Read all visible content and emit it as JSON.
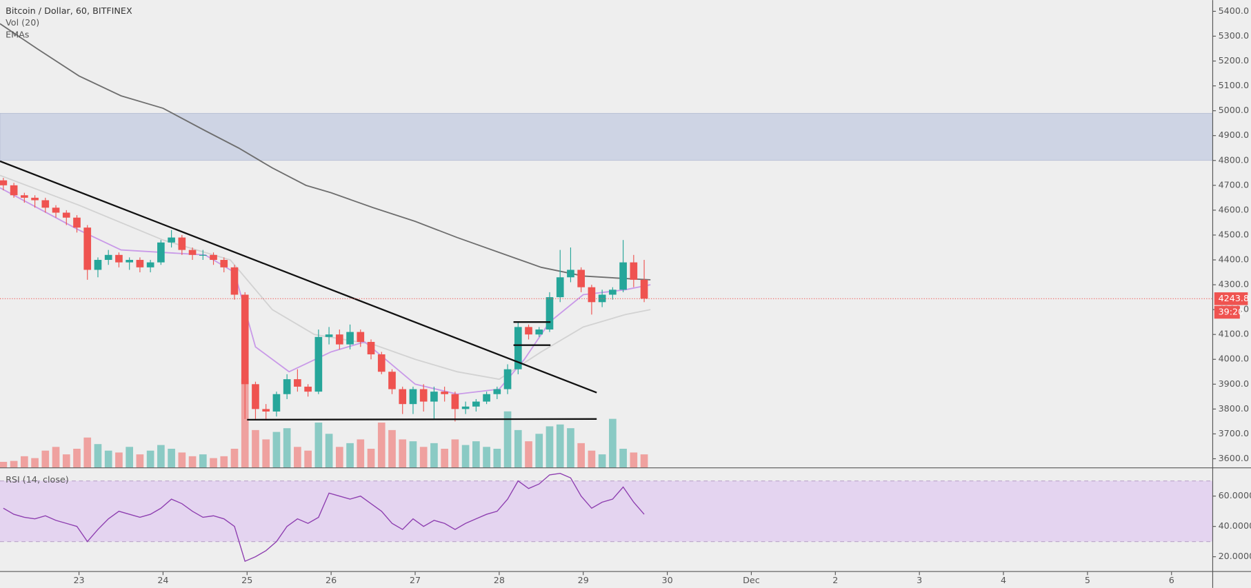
{
  "chart_data": [
    {
      "type": "candlestick",
      "title": "Bitcoin / Dollar, 60, BITFINEX",
      "volume_title": "Vol (20)",
      "ema_title": "EMAs",
      "xlim": [
        22.06,
        36.49
      ],
      "ylim": [
        3565,
        5445
      ],
      "yticks": [
        {
          "value": 3600,
          "label": "3600.0"
        },
        {
          "value": 3700,
          "label": "3700.0"
        },
        {
          "value": 3800,
          "label": "3800.0"
        },
        {
          "value": 3900,
          "label": "3900.0"
        },
        {
          "value": 4000,
          "label": "4000.0"
        },
        {
          "value": 4100,
          "label": "4100.0"
        },
        {
          "value": 4200,
          "label": "4200.0"
        },
        {
          "value": 4300,
          "label": "4300.0"
        },
        {
          "value": 4400,
          "label": "4400.0"
        },
        {
          "value": 4500,
          "label": "4500.0"
        },
        {
          "value": 4600,
          "label": "4600.0"
        },
        {
          "value": 4700,
          "label": "4700.0"
        },
        {
          "value": 4800,
          "label": "4800.0"
        },
        {
          "value": 4900,
          "label": "4900.0"
        },
        {
          "value": 5000,
          "label": "5000.0"
        },
        {
          "value": 5100,
          "label": "5100.0"
        },
        {
          "value": 5200,
          "label": "5200.0"
        },
        {
          "value": 5300,
          "label": "5300.0"
        },
        {
          "value": 5400,
          "label": "5400.0"
        }
      ],
      "up_color": "#26a69a",
      "down_color": "#ef5350",
      "volume_lim": [
        0,
        500
      ],
      "x": [
        22.1,
        22.225,
        22.35,
        22.475,
        22.6,
        22.725,
        22.85,
        22.975,
        23.1,
        23.225,
        23.35,
        23.475,
        23.6,
        23.725,
        23.85,
        23.975,
        24.1,
        24.225,
        24.35,
        24.475,
        24.6,
        24.725,
        24.85,
        24.975,
        25.1,
        25.225,
        25.35,
        25.475,
        25.6,
        25.725,
        25.85,
        25.975,
        26.1,
        26.225,
        26.35,
        26.475,
        26.6,
        26.725,
        26.85,
        26.975,
        27.1,
        27.225,
        27.35,
        27.475,
        27.6,
        27.725,
        27.85,
        27.975,
        28.1,
        28.225,
        28.35,
        28.475,
        28.6,
        28.725,
        28.85,
        28.975,
        29.1,
        29.225,
        29.35,
        29.475,
        29.6,
        29.725
      ],
      "open": [
        4720,
        4700,
        4660,
        4650,
        4640,
        4610,
        4590,
        4570,
        4530,
        4360,
        4400,
        4420,
        4390,
        4400,
        4370,
        4390,
        4470,
        4490,
        4440,
        4420,
        4420,
        4400,
        4370,
        4260,
        3900,
        3800,
        3790,
        3860,
        3920,
        3890,
        3870,
        4090,
        4100,
        4060,
        4110,
        4070,
        4020,
        3950,
        3880,
        3820,
        3880,
        3830,
        3870,
        3860,
        3800,
        3810,
        3830,
        3860,
        3880,
        3960,
        4130,
        4100,
        4120,
        4250,
        4330,
        4360,
        4290,
        4230,
        4260,
        4280,
        4390,
        4320
      ],
      "high": [
        4730,
        4710,
        4670,
        4660,
        4650,
        4620,
        4600,
        4580,
        4540,
        4410,
        4440,
        4430,
        4410,
        4410,
        4400,
        4480,
        4520,
        4500,
        4450,
        4440,
        4430,
        4410,
        4380,
        4270,
        3910,
        3820,
        3870,
        3940,
        3960,
        3900,
        4120,
        4130,
        4120,
        4140,
        4120,
        4080,
        4030,
        3960,
        3890,
        3890,
        3900,
        3890,
        3890,
        3870,
        3830,
        3840,
        3870,
        3890,
        3980,
        4150,
        4140,
        4130,
        4270,
        4440,
        4450,
        4370,
        4300,
        4280,
        4290,
        4480,
        4420,
        4400
      ],
      "low": [
        4680,
        4650,
        4630,
        4610,
        4590,
        4570,
        4540,
        4510,
        4320,
        4330,
        4380,
        4370,
        4360,
        4350,
        4350,
        4380,
        4450,
        4420,
        4400,
        4400,
        4380,
        4350,
        4240,
        3760,
        3760,
        3760,
        3770,
        3840,
        3870,
        3850,
        3860,
        4060,
        4040,
        4040,
        4050,
        4000,
        3940,
        3860,
        3780,
        3780,
        3790,
        3760,
        3830,
        3750,
        3780,
        3790,
        3820,
        3840,
        3860,
        3940,
        4080,
        4090,
        4110,
        4230,
        4310,
        4270,
        4180,
        4210,
        4240,
        4270,
        4290,
        4230
      ],
      "close": [
        4700,
        4660,
        4650,
        4640,
        4610,
        4590,
        4570,
        4530,
        4360,
        4400,
        4420,
        4390,
        4400,
        4370,
        4390,
        4470,
        4490,
        4440,
        4420,
        4420,
        4400,
        4370,
        4260,
        3900,
        3800,
        3790,
        3860,
        3920,
        3890,
        3870,
        4090,
        4100,
        4060,
        4110,
        4070,
        4020,
        3950,
        3880,
        3820,
        3880,
        3830,
        3870,
        3860,
        3800,
        3810,
        3830,
        3860,
        3880,
        3960,
        4130,
        4100,
        4120,
        4250,
        4330,
        4360,
        4290,
        4230,
        4260,
        4280,
        4390,
        4320,
        4244
      ],
      "volume": [
        6,
        7,
        12,
        10,
        18,
        22,
        14,
        20,
        32,
        25,
        18,
        16,
        22,
        14,
        18,
        24,
        20,
        16,
        12,
        14,
        10,
        12,
        20,
        95,
        40,
        30,
        38,
        42,
        22,
        18,
        48,
        36,
        22,
        26,
        30,
        20,
        48,
        40,
        30,
        28,
        22,
        26,
        20,
        30,
        24,
        28,
        22,
        20,
        60,
        40,
        28,
        36,
        44,
        46,
        42,
        26,
        18,
        14,
        52,
        20,
        16,
        14
      ],
      "zones": [
        {
          "from": 4800,
          "to": 4990,
          "color": "#b9c3dd"
        }
      ],
      "emas": [
        {
          "color": "#6e6e6e",
          "x": [
            22.06,
            22.5,
            23,
            23.5,
            24,
            24.5,
            24.9,
            25.3,
            25.7,
            26,
            26.5,
            27,
            27.5,
            28,
            28.5,
            29,
            29.5,
            29.8
          ],
          "values": [
            5350,
            5250,
            5140,
            5060,
            5010,
            4920,
            4850,
            4770,
            4700,
            4670,
            4610,
            4555,
            4490,
            4430,
            4370,
            4335,
            4325,
            4320
          ]
        },
        {
          "color": "#d2d2d2",
          "x": [
            22.06,
            23,
            24,
            24.8,
            25.3,
            25.8,
            26.5,
            27,
            27.5,
            28,
            28.5,
            29,
            29.5,
            29.8
          ],
          "values": [
            4740,
            4620,
            4480,
            4400,
            4200,
            4100,
            4060,
            4000,
            3950,
            3920,
            4030,
            4130,
            4180,
            4200
          ]
        },
        {
          "color": "#c99ae8",
          "x": [
            22.06,
            23,
            23.5,
            24,
            24.5,
            24.85,
            25.1,
            25.5,
            26,
            26.4,
            27,
            27.5,
            28,
            28.3,
            28.6,
            29,
            29.5,
            29.8
          ],
          "values": [
            4690,
            4520,
            4440,
            4430,
            4420,
            4350,
            4050,
            3950,
            4030,
            4070,
            3900,
            3860,
            3880,
            4000,
            4150,
            4260,
            4280,
            4300
          ]
        }
      ],
      "drawings": [
        {
          "x": [
            22.06,
            29.16
          ],
          "values": [
            4797,
            3866
          ]
        },
        {
          "x": [
            25.0,
            29.16
          ],
          "values": [
            3757,
            3760
          ]
        },
        {
          "x": [
            28.17,
            28.61
          ],
          "values": [
            4150,
            4150
          ]
        },
        {
          "x": [
            28.17,
            28.61
          ],
          "values": [
            4057,
            4057
          ]
        }
      ],
      "last_price": {
        "value": 4243.8,
        "label": "4243.8"
      },
      "countdown": "39:20"
    },
    {
      "type": "line",
      "title": "RSI (14, close)",
      "color": "#8e3fb0",
      "xlim": [
        22.06,
        36.49
      ],
      "ylim": [
        10.5,
        78.9
      ],
      "band": [
        30,
        70
      ],
      "yticks": [
        {
          "value": 20,
          "label": "20.0000"
        },
        {
          "value": 40,
          "label": "40.0000"
        },
        {
          "value": 60,
          "label": "60.0000"
        }
      ],
      "xticks": [
        23,
        24,
        25,
        26,
        27,
        28,
        29,
        30,
        {
          "value": 31,
          "label": "Dec"
        },
        {
          "value": 32,
          "label": "2"
        },
        {
          "value": 33,
          "label": "3"
        },
        {
          "value": 34,
          "label": "4"
        },
        {
          "value": 35,
          "label": "5"
        },
        {
          "value": 36,
          "label": "6"
        }
      ],
      "x": [
        22.1,
        22.225,
        22.35,
        22.475,
        22.6,
        22.725,
        22.85,
        22.975,
        23.1,
        23.225,
        23.35,
        23.475,
        23.6,
        23.725,
        23.85,
        23.975,
        24.1,
        24.225,
        24.35,
        24.475,
        24.6,
        24.725,
        24.85,
        24.975,
        25.1,
        25.225,
        25.35,
        25.475,
        25.6,
        25.725,
        25.85,
        25.975,
        26.1,
        26.225,
        26.35,
        26.475,
        26.6,
        26.725,
        26.85,
        26.975,
        27.1,
        27.225,
        27.35,
        27.475,
        27.6,
        27.725,
        27.85,
        27.975,
        28.1,
        28.225,
        28.35,
        28.475,
        28.6,
        28.725,
        28.85,
        28.975,
        29.1,
        29.225,
        29.35,
        29.475,
        29.6,
        29.725
      ],
      "values": [
        52,
        48,
        46,
        45,
        47,
        44,
        42,
        40,
        30,
        38,
        45,
        50,
        48,
        46,
        48,
        52,
        58,
        55,
        50,
        46,
        47,
        45,
        40,
        17,
        20,
        24,
        30,
        40,
        45,
        42,
        46,
        62,
        60,
        58,
        60,
        55,
        50,
        42,
        38,
        45,
        40,
        44,
        42,
        38,
        42,
        45,
        48,
        50,
        58,
        70,
        65,
        68,
        74,
        75,
        72,
        60,
        52,
        56,
        58,
        66,
        56,
        48
      ]
    }
  ]
}
